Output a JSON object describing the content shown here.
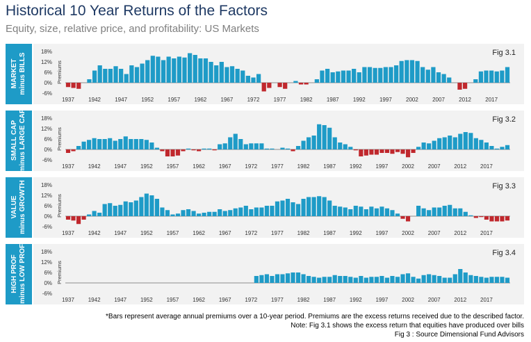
{
  "title": "Historical 10 Year Returns of the Factors",
  "subtitle": "Equity, size, relative price, and profitability: US Markets",
  "footnotes": [
    "*Bars represent average annual premiums over a 10-year period. Premiums are the excess returns received due to the described factor.",
    "Note: Fig 3.1 shows the excess return that equities have produced over bills",
    "Fig 3 : Source Dimensional Fund Advisors"
  ],
  "colors": {
    "positive": "#1e9bc7",
    "negative": "#c0282d",
    "label_bg": "#1e9bc7",
    "panel_bg": "#f2f2f2"
  },
  "panels": [
    {
      "label_line1": "MARKET",
      "label_line2": "minus BILLS",
      "fig": "Fig 3.1"
    },
    {
      "label_line1": "SMALL CAP",
      "label_line2": "minus LARGE CAP",
      "fig": "Fig 3.2"
    },
    {
      "label_line1": "VALUE",
      "label_line2": "minus GROWTH",
      "fig": "Fig 3.3"
    },
    {
      "label_line1": "HIGH PROF",
      "label_line2": "minus LOW PROF",
      "fig": "Fig 3.4"
    }
  ],
  "chart_data": [
    {
      "type": "bar",
      "title": "Fig 3.1",
      "ylabel": "Premiums",
      "ylim": [
        -6,
        18
      ],
      "yticks": [
        "18%",
        "12%",
        "6%",
        "0%",
        "-6%"
      ],
      "xticks": [
        "1937",
        "1942",
        "1947",
        "1952",
        "1957",
        "1962",
        "1967",
        "1972",
        "1977",
        "1982",
        "1987",
        "1992",
        "1997",
        "2002",
        "2007",
        "2012",
        "2017"
      ],
      "x_start": 1937,
      "values": [
        -2.5,
        -3,
        -3.5,
        0,
        2,
        7,
        10,
        8,
        8,
        9.5,
        8,
        5,
        10,
        9,
        11,
        13,
        15.5,
        15,
        13,
        15,
        14,
        15,
        14.5,
        17,
        16,
        14,
        14,
        12,
        10,
        12,
        9,
        9.5,
        8,
        7,
        4,
        3,
        5,
        -5,
        -3,
        0,
        -2.5,
        -3.5,
        0,
        1,
        -1,
        -1,
        0,
        2,
        7,
        8,
        6,
        6.5,
        7,
        7,
        8,
        6,
        9,
        9,
        8.5,
        8.5,
        9,
        9,
        10,
        12.5,
        13,
        13,
        12.5,
        9,
        7.5,
        9,
        6,
        5,
        3,
        0,
        -4,
        -3.5,
        0,
        2,
        6.5,
        7,
        7,
        6.5,
        7,
        9
      ]
    },
    {
      "type": "bar",
      "title": "Fig 3.2",
      "ylabel": "Premiums",
      "ylim": [
        -6,
        18
      ],
      "yticks": [
        "18%",
        "12%",
        "6%",
        "0%",
        "-6%"
      ],
      "xticks": [
        "1937",
        "1942",
        "1947",
        "1952",
        "1957",
        "1962",
        "1967",
        "1972",
        "1977",
        "1982",
        "1987",
        "1992",
        "1997",
        "2002",
        "2007",
        "2012",
        "2017"
      ],
      "x_start": 1937,
      "values": [
        -2,
        -1,
        2,
        4.5,
        5.5,
        6.5,
        6,
        6,
        6.5,
        5,
        6,
        7.5,
        6,
        6,
        6,
        5.5,
        4,
        1,
        -1,
        -4,
        -4,
        -3.5,
        -1,
        0.5,
        -0.5,
        -1,
        0.5,
        0.5,
        -0.5,
        3,
        3.5,
        7,
        9,
        6,
        3,
        3.5,
        3.5,
        3.5,
        0.5,
        0.5,
        0,
        1,
        0.5,
        -1,
        2,
        5,
        7,
        8,
        14.5,
        14,
        12.5,
        7,
        4,
        3,
        1.5,
        -0.5,
        -4,
        -3.5,
        -3,
        -3,
        -2,
        -2,
        -2.5,
        -1.5,
        -2.5,
        -4.5,
        -2,
        1.5,
        4,
        3.5,
        5,
        6.5,
        7,
        8,
        7,
        9,
        10,
        9.5,
        6.5,
        5.5,
        4,
        2,
        0.5,
        1.5,
        2.5
      ]
    },
    {
      "type": "bar",
      "title": "Fig 3.3",
      "ylabel": "Premiums",
      "ylim": [
        -6,
        18
      ],
      "yticks": [
        "18%",
        "12%",
        "6%",
        "0%",
        "-6%"
      ],
      "xticks": [
        "1937",
        "1942",
        "1947",
        "1952",
        "1957",
        "1962",
        "1967",
        "1972",
        "1977",
        "1982",
        "1987",
        "1992",
        "1997",
        "2002",
        "2007",
        "2012",
        "2017"
      ],
      "x_start": 1937,
      "values": [
        -2,
        -2.5,
        -4.5,
        -2,
        1,
        3,
        2,
        7,
        7.5,
        6,
        6.5,
        8.5,
        8,
        9,
        11,
        13,
        12,
        10,
        5,
        3.5,
        1,
        1.5,
        3.5,
        4,
        3,
        1.5,
        2,
        2.5,
        2.5,
        4,
        3,
        3.5,
        4.5,
        5,
        6,
        4,
        5,
        5,
        6,
        6,
        8.5,
        9,
        10,
        8,
        7,
        10,
        11,
        11,
        11.5,
        11,
        9,
        6,
        5.5,
        5,
        4,
        6,
        5.5,
        4,
        5.5,
        4.5,
        5.5,
        4.5,
        3.5,
        1.5,
        -1.5,
        -3,
        0,
        6,
        4.5,
        3.5,
        5,
        5,
        6,
        6.5,
        4.5,
        4.5,
        2.5,
        0.5,
        -1,
        -0.5,
        -2,
        -3,
        -3,
        -3,
        -2.5
      ]
    },
    {
      "type": "bar",
      "title": "Fig 3.4",
      "ylabel": "Premiums",
      "ylim": [
        -6,
        18
      ],
      "yticks": [
        "18%",
        "12%",
        "6%",
        "0%",
        "-6%"
      ],
      "xticks": [
        "1937",
        "1942",
        "1947",
        "1952",
        "1957",
        "1962",
        "1967",
        "1972",
        "1977",
        "1982",
        "1987",
        "1992",
        "1997",
        "2002",
        "2007",
        "2012",
        "2017"
      ],
      "x_start": 1937,
      "values": [
        0,
        0,
        0,
        0,
        0,
        0,
        0,
        0,
        0,
        0,
        0,
        0,
        0,
        0,
        0,
        0,
        0,
        0,
        0,
        0,
        0,
        0,
        0,
        0,
        0,
        0,
        0,
        0,
        0,
        0,
        0,
        0,
        0,
        0,
        0,
        0,
        4,
        4.5,
        5,
        4,
        5,
        5,
        5.5,
        6,
        6,
        5,
        4,
        3.5,
        3,
        3.5,
        3.5,
        4.5,
        4,
        4,
        3.5,
        3,
        4,
        3,
        3.5,
        3.5,
        4,
        3,
        4,
        3.5,
        5,
        5.5,
        3.5,
        2.5,
        4.5,
        5,
        4.5,
        4,
        3,
        3,
        5,
        8,
        6,
        4.5,
        4,
        3.5,
        3,
        3.5,
        3.5,
        3.5,
        3
      ]
    }
  ]
}
